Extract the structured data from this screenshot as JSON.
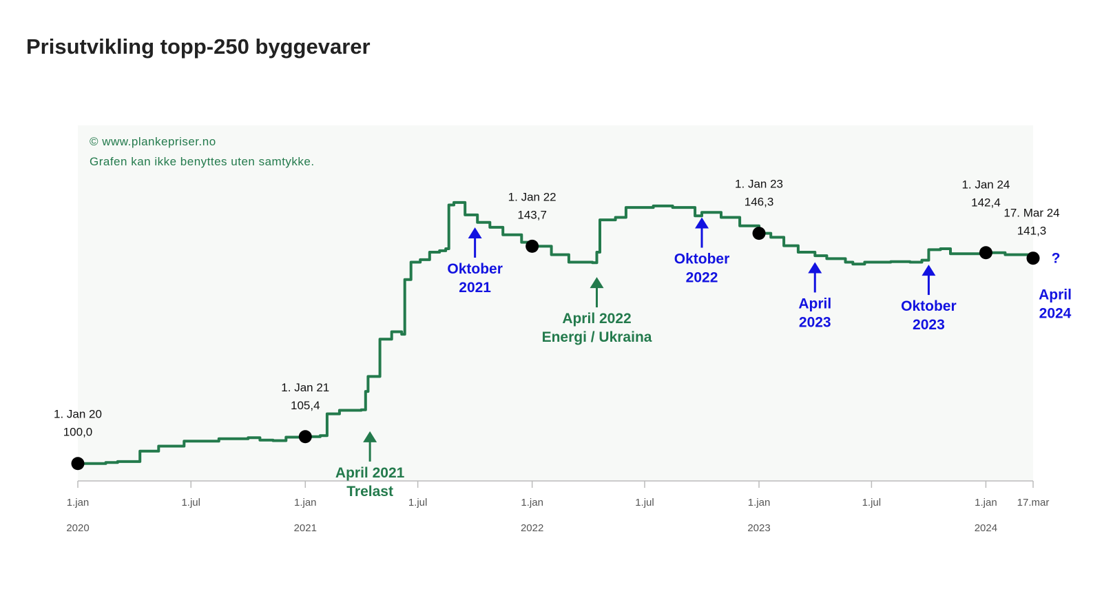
{
  "title": "Prisutvikling topp-250 byggevarer",
  "credit": [
    "© www.plankepriser.no",
    "Grafen kan ikke benyttes uten samtykke."
  ],
  "colors": {
    "line": "#237a4c",
    "blue": "#1212e0",
    "green": "#237a4c",
    "plot_bg": "#f7f9f7"
  },
  "chart_data": {
    "type": "line",
    "title": "Prisutvikling topp-250 byggevarer",
    "x_type": "date",
    "xlim": [
      "2020-01-01",
      "2024-03-17"
    ],
    "ylim": [
      96.5,
      168
    ],
    "grid": false,
    "x_ticks": [
      {
        "date": "2020-01-01",
        "label": "1.jan",
        "year": "2020"
      },
      {
        "date": "2020-07-01",
        "label": "1.jul",
        "year": ""
      },
      {
        "date": "2021-01-01",
        "label": "1.jan",
        "year": "2021"
      },
      {
        "date": "2021-07-01",
        "label": "1.jul",
        "year": ""
      },
      {
        "date": "2022-01-01",
        "label": "1.jan",
        "year": "2022"
      },
      {
        "date": "2022-07-01",
        "label": "1.jul",
        "year": ""
      },
      {
        "date": "2023-01-01",
        "label": "1.jan",
        "year": "2023"
      },
      {
        "date": "2023-07-01",
        "label": "1.jul",
        "year": ""
      },
      {
        "date": "2024-01-01",
        "label": "1.jan",
        "year": "2024"
      },
      {
        "date": "2024-03-17",
        "label": "17.mar",
        "year": ""
      }
    ],
    "series": [
      {
        "points": [
          [
            "2020-01-01",
            100.0
          ],
          [
            "2020-02-15",
            100.2
          ],
          [
            "2020-03-05",
            100.4
          ],
          [
            "2020-04-10",
            102.5
          ],
          [
            "2020-05-10",
            103.5
          ],
          [
            "2020-06-20",
            104.5
          ],
          [
            "2020-08-15",
            105.0
          ],
          [
            "2020-10-01",
            105.2
          ],
          [
            "2020-10-20",
            104.7
          ],
          [
            "2020-11-10",
            104.6
          ],
          [
            "2020-12-01",
            105.3
          ],
          [
            "2021-01-01",
            105.4
          ],
          [
            "2021-01-25",
            105.6
          ],
          [
            "2021-02-05",
            110.0
          ],
          [
            "2021-02-25",
            110.7
          ],
          [
            "2021-04-01",
            110.8
          ],
          [
            "2021-04-08",
            114.5
          ],
          [
            "2021-04-12",
            117.5
          ],
          [
            "2021-05-01",
            125.0
          ],
          [
            "2021-05-20",
            126.5
          ],
          [
            "2021-06-05",
            126.0
          ],
          [
            "2021-06-10",
            137.0
          ],
          [
            "2021-06-20",
            140.5
          ],
          [
            "2021-07-05",
            141.0
          ],
          [
            "2021-07-20",
            142.5
          ],
          [
            "2021-08-05",
            142.8
          ],
          [
            "2021-08-15",
            143.2
          ],
          [
            "2021-08-20",
            152.0
          ],
          [
            "2021-08-28",
            152.5
          ],
          [
            "2021-09-15",
            150.0
          ],
          [
            "2021-10-05",
            148.5
          ],
          [
            "2021-10-25",
            147.5
          ],
          [
            "2021-11-15",
            146.0
          ],
          [
            "2021-12-15",
            144.5
          ],
          [
            "2022-01-01",
            143.7
          ],
          [
            "2022-02-01",
            142.0
          ],
          [
            "2022-03-01",
            140.5
          ],
          [
            "2022-04-08",
            140.4
          ],
          [
            "2022-04-15",
            142.5
          ],
          [
            "2022-04-20",
            149.0
          ],
          [
            "2022-05-15",
            149.5
          ],
          [
            "2022-06-01",
            151.5
          ],
          [
            "2022-07-15",
            151.8
          ],
          [
            "2022-08-15",
            151.5
          ],
          [
            "2022-09-20",
            149.8
          ],
          [
            "2022-10-01",
            150.5
          ],
          [
            "2022-11-01",
            149.5
          ],
          [
            "2022-12-01",
            147.8
          ],
          [
            "2023-01-01",
            146.3
          ],
          [
            "2023-01-20",
            145.5
          ],
          [
            "2023-02-10",
            143.8
          ],
          [
            "2023-03-05",
            142.5
          ],
          [
            "2023-04-01",
            141.8
          ],
          [
            "2023-04-20",
            141.2
          ],
          [
            "2023-05-20",
            140.5
          ],
          [
            "2023-06-01",
            140.1
          ],
          [
            "2023-06-20",
            140.5
          ],
          [
            "2023-08-01",
            140.6
          ],
          [
            "2023-09-01",
            140.5
          ],
          [
            "2023-09-20",
            140.9
          ],
          [
            "2023-10-01",
            143.0
          ],
          [
            "2023-10-20",
            143.2
          ],
          [
            "2023-11-05",
            142.2
          ],
          [
            "2023-12-01",
            142.2
          ],
          [
            "2024-01-01",
            142.4
          ],
          [
            "2024-02-01",
            142.0
          ],
          [
            "2024-03-17",
            141.3
          ]
        ]
      }
    ],
    "markers": [
      {
        "date": "2020-01-01",
        "value": 100.0,
        "date_label": "1. Jan 20",
        "value_label": "100,0"
      },
      {
        "date": "2021-01-01",
        "value": 105.4,
        "date_label": "1. Jan 21",
        "value_label": "105,4"
      },
      {
        "date": "2022-01-01",
        "value": 143.7,
        "date_label": "1. Jan 22",
        "value_label": "143,7"
      },
      {
        "date": "2023-01-01",
        "value": 146.3,
        "date_label": "1. Jan 23",
        "value_label": "146,3"
      },
      {
        "date": "2024-01-01",
        "value": 142.4,
        "date_label": "1. Jan 24",
        "value_label": "142,4"
      },
      {
        "date": "2024-03-17",
        "value": 141.3,
        "date_label": "17. Mar 24",
        "value_label": "141,3"
      }
    ],
    "annotations": [
      {
        "date": "2021-10-01",
        "direction": "up",
        "color": "blue",
        "value": 147.5,
        "lines": [
          "Oktober",
          "2021"
        ]
      },
      {
        "date": "2021-04-15",
        "direction": "up",
        "color": "green",
        "value": 106.5,
        "lines": [
          "April 2021",
          "Trelast"
        ]
      },
      {
        "date": "2022-04-15",
        "direction": "up",
        "color": "green",
        "value": 137.5,
        "lines": [
          "April 2022",
          "Energi / Ukraina"
        ]
      },
      {
        "date": "2022-10-01",
        "direction": "up",
        "color": "blue",
        "value": 149.5,
        "lines": [
          "Oktober",
          "2022"
        ]
      },
      {
        "date": "2023-04-01",
        "direction": "up",
        "color": "blue",
        "value": 140.5,
        "lines": [
          "April",
          "2023"
        ]
      },
      {
        "date": "2023-10-01",
        "direction": "up",
        "color": "blue",
        "value": 140.0,
        "lines": [
          "Oktober",
          "2023"
        ]
      },
      {
        "date": "2024-04-01",
        "direction": "none",
        "color": "blue",
        "value": 0,
        "lines": [
          "April",
          "2024"
        ]
      }
    ],
    "trailing_mark": "?"
  }
}
